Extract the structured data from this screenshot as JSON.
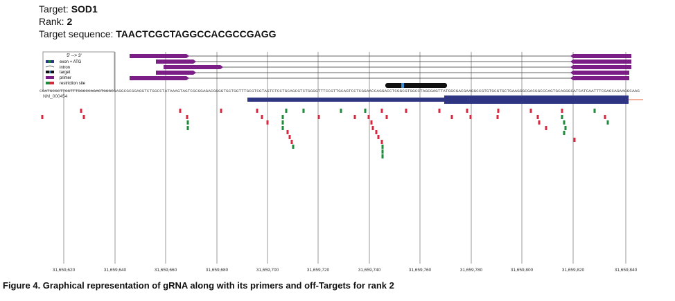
{
  "header": {
    "target_label": "Target:",
    "target_value": "SOD1",
    "rank_label": "Rank:",
    "rank_value": "2",
    "seq_label": "Target sequence:",
    "seq_value": "TAACTCGCTAGGCCACGCCGAGG"
  },
  "legend": {
    "title": "5' --> 3'",
    "items": [
      "exon + ATG",
      "intron",
      "target",
      "primer",
      "restriction site"
    ]
  },
  "sequence": "CGATGCGCTTGGTTTGGGCCAGAGTGGGCGAGGCGCGGAGGTCTGGCCTATAAAGTAGTCGCGGAGACGGGGTGCTGGTTTGCGTCGTAGTCTCCTGCAGCGTCTGGGGTTTCCGTTGCAGTCCTCGGAACCAGGACCTCGGCGTGGCCTAGCGAGTTATGGCGACGAAGGCCGTGTGCGTGCTGAAGGGCGACGGCCCAGTGCAGGGCATCATCAATTTCGAGCAGAAGGCAAG",
  "transcript_id": "NM_000454",
  "x_axis": {
    "ticks": [
      "31,659,620",
      "31,659,640",
      "31,659,660",
      "31,659,680",
      "31,659,700",
      "31,659,720",
      "31,659,740",
      "31,659,760",
      "31,659,780",
      "31,659,800",
      "31,659,820",
      "31,659,840"
    ]
  },
  "caption": "Figure 4. Graphical representation of gRNA along with its primers and off-Targets for rank 2",
  "colors": {
    "primer": "#7b1f86",
    "exon": "#2e3583",
    "target": "#111111",
    "target_mark": "#3b8fd6",
    "site_red": "#d6283f",
    "site_green": "#1e8a3a",
    "grid": "#9a9a9a",
    "accent_line": "#e8663d"
  }
}
